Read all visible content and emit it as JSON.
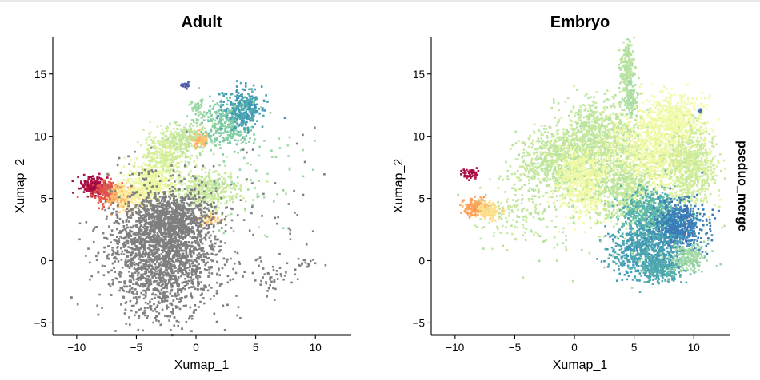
{
  "chart_data": [
    {
      "type": "scatter",
      "title": "Adult",
      "xlabel": "Xumap_1",
      "ylabel": "Xumap_2",
      "xlim": [
        -12,
        13
      ],
      "ylim": [
        -6,
        18
      ],
      "xticks": [
        -10,
        -5,
        0,
        5,
        10
      ],
      "yticks": [
        -5,
        0,
        5,
        10,
        15
      ],
      "xtick_labels": [
        "−10",
        "−5",
        "0",
        "5",
        "10"
      ],
      "ytick_labels": [
        "−5",
        "0",
        "5",
        "10",
        "15"
      ],
      "grid": false,
      "color_by": "pseduo_merge",
      "colormap": "Spectral",
      "na_color": "#7f7f7f",
      "clusters": [
        {
          "kind": "grey",
          "cx": -2.8,
          "cy": 0.8,
          "sx": 2.3,
          "sy": 2.5,
          "n": 2600,
          "value": null
        },
        {
          "kind": "grey",
          "cx": -2.0,
          "cy": 3.3,
          "sx": 1.4,
          "sy": 1.0,
          "n": 600,
          "value": null
        },
        {
          "kind": "grey",
          "cx": 6.5,
          "cy": -1.3,
          "sx": 0.9,
          "sy": 0.6,
          "n": 40,
          "value": null
        },
        {
          "kind": "grey",
          "cx": 9.3,
          "cy": -0.3,
          "sx": 0.6,
          "sy": 0.25,
          "n": 15,
          "value": null
        },
        {
          "kind": "grey",
          "cx": 5.5,
          "cy": 3.5,
          "sx": 2.8,
          "sy": 3.2,
          "n": 60,
          "value": null
        },
        {
          "kind": "color",
          "cx": -8.6,
          "cy": 6.0,
          "sx": 0.5,
          "sy": 0.35,
          "n": 220,
          "value": 0.02
        },
        {
          "kind": "color",
          "cx": -7.5,
          "cy": 5.5,
          "sx": 0.6,
          "sy": 0.45,
          "n": 220,
          "value": 0.15
        },
        {
          "kind": "color",
          "cx": -6.4,
          "cy": 5.2,
          "sx": 0.6,
          "sy": 0.45,
          "n": 180,
          "value": 0.32
        },
        {
          "kind": "color",
          "cx": -5.3,
          "cy": 5.3,
          "sx": 0.7,
          "sy": 0.5,
          "n": 160,
          "value": 0.44
        },
        {
          "kind": "color",
          "cx": -3.7,
          "cy": 6.3,
          "sx": 1.1,
          "sy": 0.8,
          "n": 350,
          "value": 0.58
        },
        {
          "kind": "color",
          "cx": -2.5,
          "cy": 8.6,
          "sx": 0.9,
          "sy": 0.9,
          "n": 300,
          "value": 0.63
        },
        {
          "kind": "color",
          "cx": -0.8,
          "cy": 9.8,
          "sx": 0.9,
          "sy": 0.7,
          "n": 220,
          "value": 0.66
        },
        {
          "kind": "color",
          "cx": 1.0,
          "cy": 5.7,
          "sx": 1.3,
          "sy": 0.8,
          "n": 400,
          "value": 0.65
        },
        {
          "kind": "color",
          "cx": 0.4,
          "cy": 9.7,
          "sx": 0.3,
          "sy": 0.3,
          "n": 70,
          "value": 0.32
        },
        {
          "kind": "color",
          "cx": 1.2,
          "cy": 3.3,
          "sx": 0.5,
          "sy": 0.3,
          "n": 40,
          "value": 0.35
        },
        {
          "kind": "color",
          "cx": 2.6,
          "cy": 11.0,
          "sx": 1.0,
          "sy": 0.9,
          "n": 300,
          "value": 0.76
        },
        {
          "kind": "color",
          "cx": 4.0,
          "cy": 12.2,
          "sx": 0.8,
          "sy": 0.8,
          "n": 300,
          "value": 0.86
        },
        {
          "kind": "color",
          "cx": 0.0,
          "cy": 12.0,
          "sx": 0.35,
          "sy": 0.5,
          "n": 50,
          "value": 0.72
        },
        {
          "kind": "color",
          "cx": -0.9,
          "cy": 14.1,
          "sx": 0.2,
          "sy": 0.12,
          "n": 20,
          "value": 0.98
        },
        {
          "kind": "color",
          "cx": 4.5,
          "cy": 7.0,
          "sx": 2.5,
          "sy": 2.2,
          "n": 80,
          "value": 0.72
        }
      ]
    },
    {
      "type": "scatter",
      "title": "Embryo",
      "xlabel": "Xumap_1",
      "ylabel": "Xumap_2",
      "xlim": [
        -12,
        13
      ],
      "ylim": [
        -6,
        18
      ],
      "xticks": [
        -10,
        -5,
        0,
        5,
        10
      ],
      "yticks": [
        -5,
        0,
        5,
        10,
        15
      ],
      "xtick_labels": [
        "−10",
        "−5",
        "0",
        "5",
        "10"
      ],
      "ytick_labels": [
        "−5",
        "0",
        "5",
        "10",
        "15"
      ],
      "grid": false,
      "color_by": "pseduo_merge",
      "colormap": "Spectral",
      "clusters": [
        {
          "kind": "color",
          "cx": -8.7,
          "cy": 7.0,
          "sx": 0.35,
          "sy": 0.18,
          "n": 50,
          "value": 0.02
        },
        {
          "kind": "color",
          "cx": -8.2,
          "cy": 4.3,
          "sx": 0.5,
          "sy": 0.35,
          "n": 160,
          "value": 0.28
        },
        {
          "kind": "color",
          "cx": -7.1,
          "cy": 4.0,
          "sx": 0.5,
          "sy": 0.4,
          "n": 120,
          "value": 0.4
        },
        {
          "kind": "color",
          "cx": -4.5,
          "cy": 4.0,
          "sx": 1.6,
          "sy": 1.3,
          "n": 150,
          "value": 0.66
        },
        {
          "kind": "color",
          "cx": -1.5,
          "cy": 8.0,
          "sx": 1.5,
          "sy": 1.2,
          "n": 700,
          "value": 0.66
        },
        {
          "kind": "color",
          "cx": 2.0,
          "cy": 9.8,
          "sx": 1.8,
          "sy": 1.5,
          "n": 900,
          "value": 0.66
        },
        {
          "kind": "color",
          "cx": 0.8,
          "cy": 6.3,
          "sx": 1.1,
          "sy": 1.4,
          "n": 650,
          "value": 0.56
        },
        {
          "kind": "color",
          "cx": 4.4,
          "cy": 15.5,
          "sx": 0.3,
          "sy": 1.0,
          "n": 220,
          "value": 0.68
        },
        {
          "kind": "color",
          "cx": 4.8,
          "cy": 13.0,
          "sx": 0.3,
          "sy": 0.7,
          "n": 100,
          "value": 0.7
        },
        {
          "kind": "color",
          "cx": 8.3,
          "cy": 11.3,
          "sx": 1.2,
          "sy": 1.0,
          "n": 600,
          "value": 0.55
        },
        {
          "kind": "color",
          "cx": 6.5,
          "cy": 8.3,
          "sx": 1.8,
          "sy": 1.5,
          "n": 950,
          "value": 0.57
        },
        {
          "kind": "color",
          "cx": 9.8,
          "cy": 7.5,
          "sx": 1.0,
          "sy": 1.6,
          "n": 700,
          "value": 0.64
        },
        {
          "kind": "color",
          "cx": 4.2,
          "cy": 5.8,
          "sx": 1.2,
          "sy": 1.3,
          "n": 500,
          "value": 0.66
        },
        {
          "kind": "color",
          "cx": 6.5,
          "cy": 3.8,
          "sx": 1.3,
          "sy": 0.9,
          "n": 600,
          "value": 0.82
        },
        {
          "kind": "color",
          "cx": 8.8,
          "cy": 2.8,
          "sx": 1.0,
          "sy": 1.0,
          "n": 600,
          "value": 0.92
        },
        {
          "kind": "color",
          "cx": 6.0,
          "cy": 0.8,
          "sx": 1.5,
          "sy": 1.0,
          "n": 700,
          "value": 0.86
        },
        {
          "kind": "color",
          "cx": 7.2,
          "cy": -0.7,
          "sx": 1.0,
          "sy": 0.6,
          "n": 250,
          "value": 0.84
        },
        {
          "kind": "color",
          "cx": 9.6,
          "cy": 0.2,
          "sx": 0.8,
          "sy": 0.5,
          "n": 200,
          "value": 0.72
        },
        {
          "kind": "color",
          "cx": 10.5,
          "cy": 12.0,
          "sx": 0.1,
          "sy": 0.1,
          "n": 8,
          "value": 0.95
        },
        {
          "kind": "color",
          "cx": 1.0,
          "cy": 4.5,
          "sx": 3.5,
          "sy": 3.0,
          "n": 150,
          "value": 0.68
        }
      ]
    }
  ],
  "legend": {
    "side_label": "pseduo_merge"
  }
}
